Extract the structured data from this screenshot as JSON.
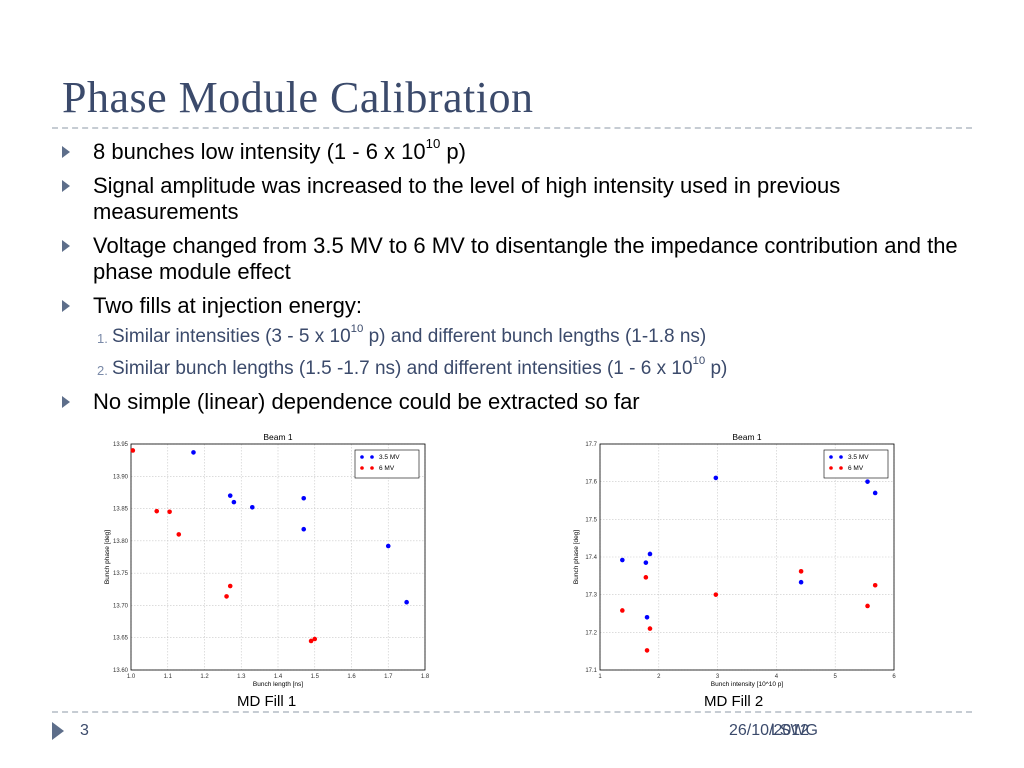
{
  "slide": {
    "title": "Phase Module Calibration",
    "bullets": [
      {
        "pre": "8 bunches low intensity (1 - 6 x 10",
        "sup": "10",
        "post": " p)"
      },
      {
        "text": "Signal amplitude was increased to the level of high intensity used in previous measurements"
      },
      {
        "text": "Voltage changed from 3.5 MV to 6 MV to disentangle the impedance contribution and the phase module effect"
      },
      {
        "text": "Two fills at injection energy:"
      },
      {
        "text": "No simple (linear) dependence could be extracted so far"
      }
    ],
    "subitems": [
      {
        "num": "1.",
        "pre": "Similar intensities (3 - 5 x 10",
        "sup": "10",
        "post": " p) and different bunch lengths (1-1.8 ns)"
      },
      {
        "num": "2.",
        "pre": "Similar bunch lengths (1.5 -1.7 ns) and different intensities (1 - 6 x 10",
        "sup": "10",
        "post": " p)"
      }
    ],
    "captions": [
      "MD Fill 1",
      "MD Fill 2"
    ],
    "footer": {
      "page": "3",
      "org": "LSWG",
      "date": "26/10/2012"
    }
  },
  "colors": {
    "title": "#3b4a6b",
    "blue_series": "#0000ff",
    "red_series": "#ff0000",
    "bullet": "#5d6e8a"
  },
  "chart_data": [
    {
      "type": "scatter",
      "title": "Beam 1",
      "xlabel": "Bunch length [ns]",
      "ylabel": "Bunch phase [deg]",
      "xlim": [
        1.0,
        1.8
      ],
      "ylim": [
        13.6,
        13.95
      ],
      "xticks": [
        "1.0",
        "1.1",
        "1.2",
        "1.3",
        "1.4",
        "1.5",
        "1.6",
        "1.7",
        "1.8"
      ],
      "yticks": [
        "13.60",
        "13.65",
        "13.70",
        "13.75",
        "13.80",
        "13.85",
        "13.90",
        "13.95"
      ],
      "grid": true,
      "legend": "top-right",
      "series": [
        {
          "name": "3.5 MV",
          "color": "#0000ff",
          "points": [
            [
              1.17,
              13.937
            ],
            [
              1.27,
              13.87
            ],
            [
              1.28,
              13.86
            ],
            [
              1.33,
              13.852
            ],
            [
              1.47,
              13.866
            ],
            [
              1.47,
              13.818
            ],
            [
              1.7,
              13.792
            ],
            [
              1.75,
              13.705
            ]
          ]
        },
        {
          "name": "6 MV",
          "color": "#ff0000",
          "points": [
            [
              1.005,
              13.94
            ],
            [
              1.07,
              13.846
            ],
            [
              1.105,
              13.845
            ],
            [
              1.13,
              13.81
            ],
            [
              1.26,
              13.714
            ],
            [
              1.27,
              13.73
            ],
            [
              1.49,
              13.645
            ],
            [
              1.5,
              13.648
            ]
          ]
        }
      ]
    },
    {
      "type": "scatter",
      "title": "Beam 1",
      "xlabel": "Bunch intensity [10^10 p]",
      "ylabel": "Bunch phase  [deg]",
      "xlim": [
        1,
        6
      ],
      "ylim": [
        17.1,
        17.7
      ],
      "xticks": [
        "1",
        "2",
        "3",
        "4",
        "5",
        "6"
      ],
      "yticks": [
        "17.1",
        "17.2",
        "17.3",
        "17.4",
        "17.5",
        "17.6",
        "17.7"
      ],
      "grid": true,
      "legend": "top-right",
      "series": [
        {
          "name": "3.5 MV",
          "color": "#0000ff",
          "points": [
            [
              1.38,
              17.392
            ],
            [
              1.78,
              17.385
            ],
            [
              1.85,
              17.408
            ],
            [
              1.8,
              17.24
            ],
            [
              2.97,
              17.61
            ],
            [
              4.42,
              17.333
            ],
            [
              5.55,
              17.6
            ],
            [
              5.68,
              17.57
            ]
          ]
        },
        {
          "name": "6 MV",
          "color": "#ff0000",
          "points": [
            [
              1.38,
              17.258
            ],
            [
              1.78,
              17.346
            ],
            [
              1.85,
              17.21
            ],
            [
              1.8,
              17.152
            ],
            [
              2.97,
              17.3
            ],
            [
              4.42,
              17.362
            ],
            [
              5.55,
              17.27
            ],
            [
              5.68,
              17.325
            ]
          ]
        }
      ]
    }
  ]
}
